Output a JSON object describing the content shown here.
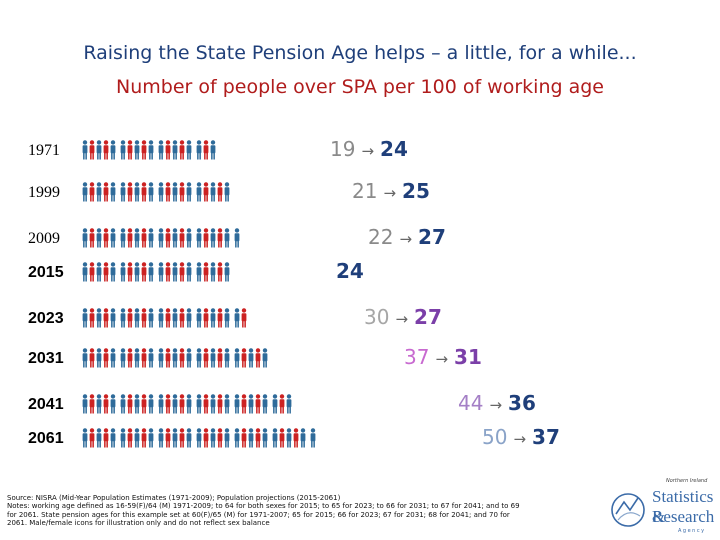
{
  "title": "Raising the State Pension Age helps – a little, for a while...",
  "subtitle": "Number of people over SPA per 100 of working age",
  "arrow": "→",
  "colors": {
    "female": "#cc2222",
    "male": "#2f6b9a"
  },
  "rows": [
    {
      "year": "1971",
      "from": "19",
      "to": "24"
    },
    {
      "year": "1999",
      "from": "21",
      "to": "25"
    },
    {
      "year": "2009",
      "from": "22",
      "to": "27"
    },
    {
      "year": "2015",
      "from": "",
      "to": "24"
    },
    {
      "year": "2023",
      "from": "30",
      "to": "27"
    },
    {
      "year": "2031",
      "from": "37",
      "to": "31"
    },
    {
      "year": "2041",
      "from": "44",
      "to": "36"
    },
    {
      "year": "2061",
      "from": "50",
      "to": "37"
    }
  ],
  "source": [
    "Source: NISRA (Mid-Year Population Estimates (1971-2009); Population projections (2015-2061)",
    "Notes: working age defined as 16-59(F)/64 (M) 1971-2009; to 64 for both sexes for 2015; to 65 for 2023; to 66 for 2031; to 67 for 2041; and to 69",
    "for 2061. State pension ages for this example set at 60(F)/65 (M) for 1971-2007; 65 for 2015; 66 for 2023; 67 for 2031; 68 for 2041; and 70 for",
    "2061. Male/female icons for illustration only and do not reflect sex balance"
  ],
  "logo": {
    "tagline": "Northern Ireland",
    "line1": "Statistics &",
    "line2": "Research",
    "line3": "Agency",
    "icon": "nisra-logo-icon"
  }
}
